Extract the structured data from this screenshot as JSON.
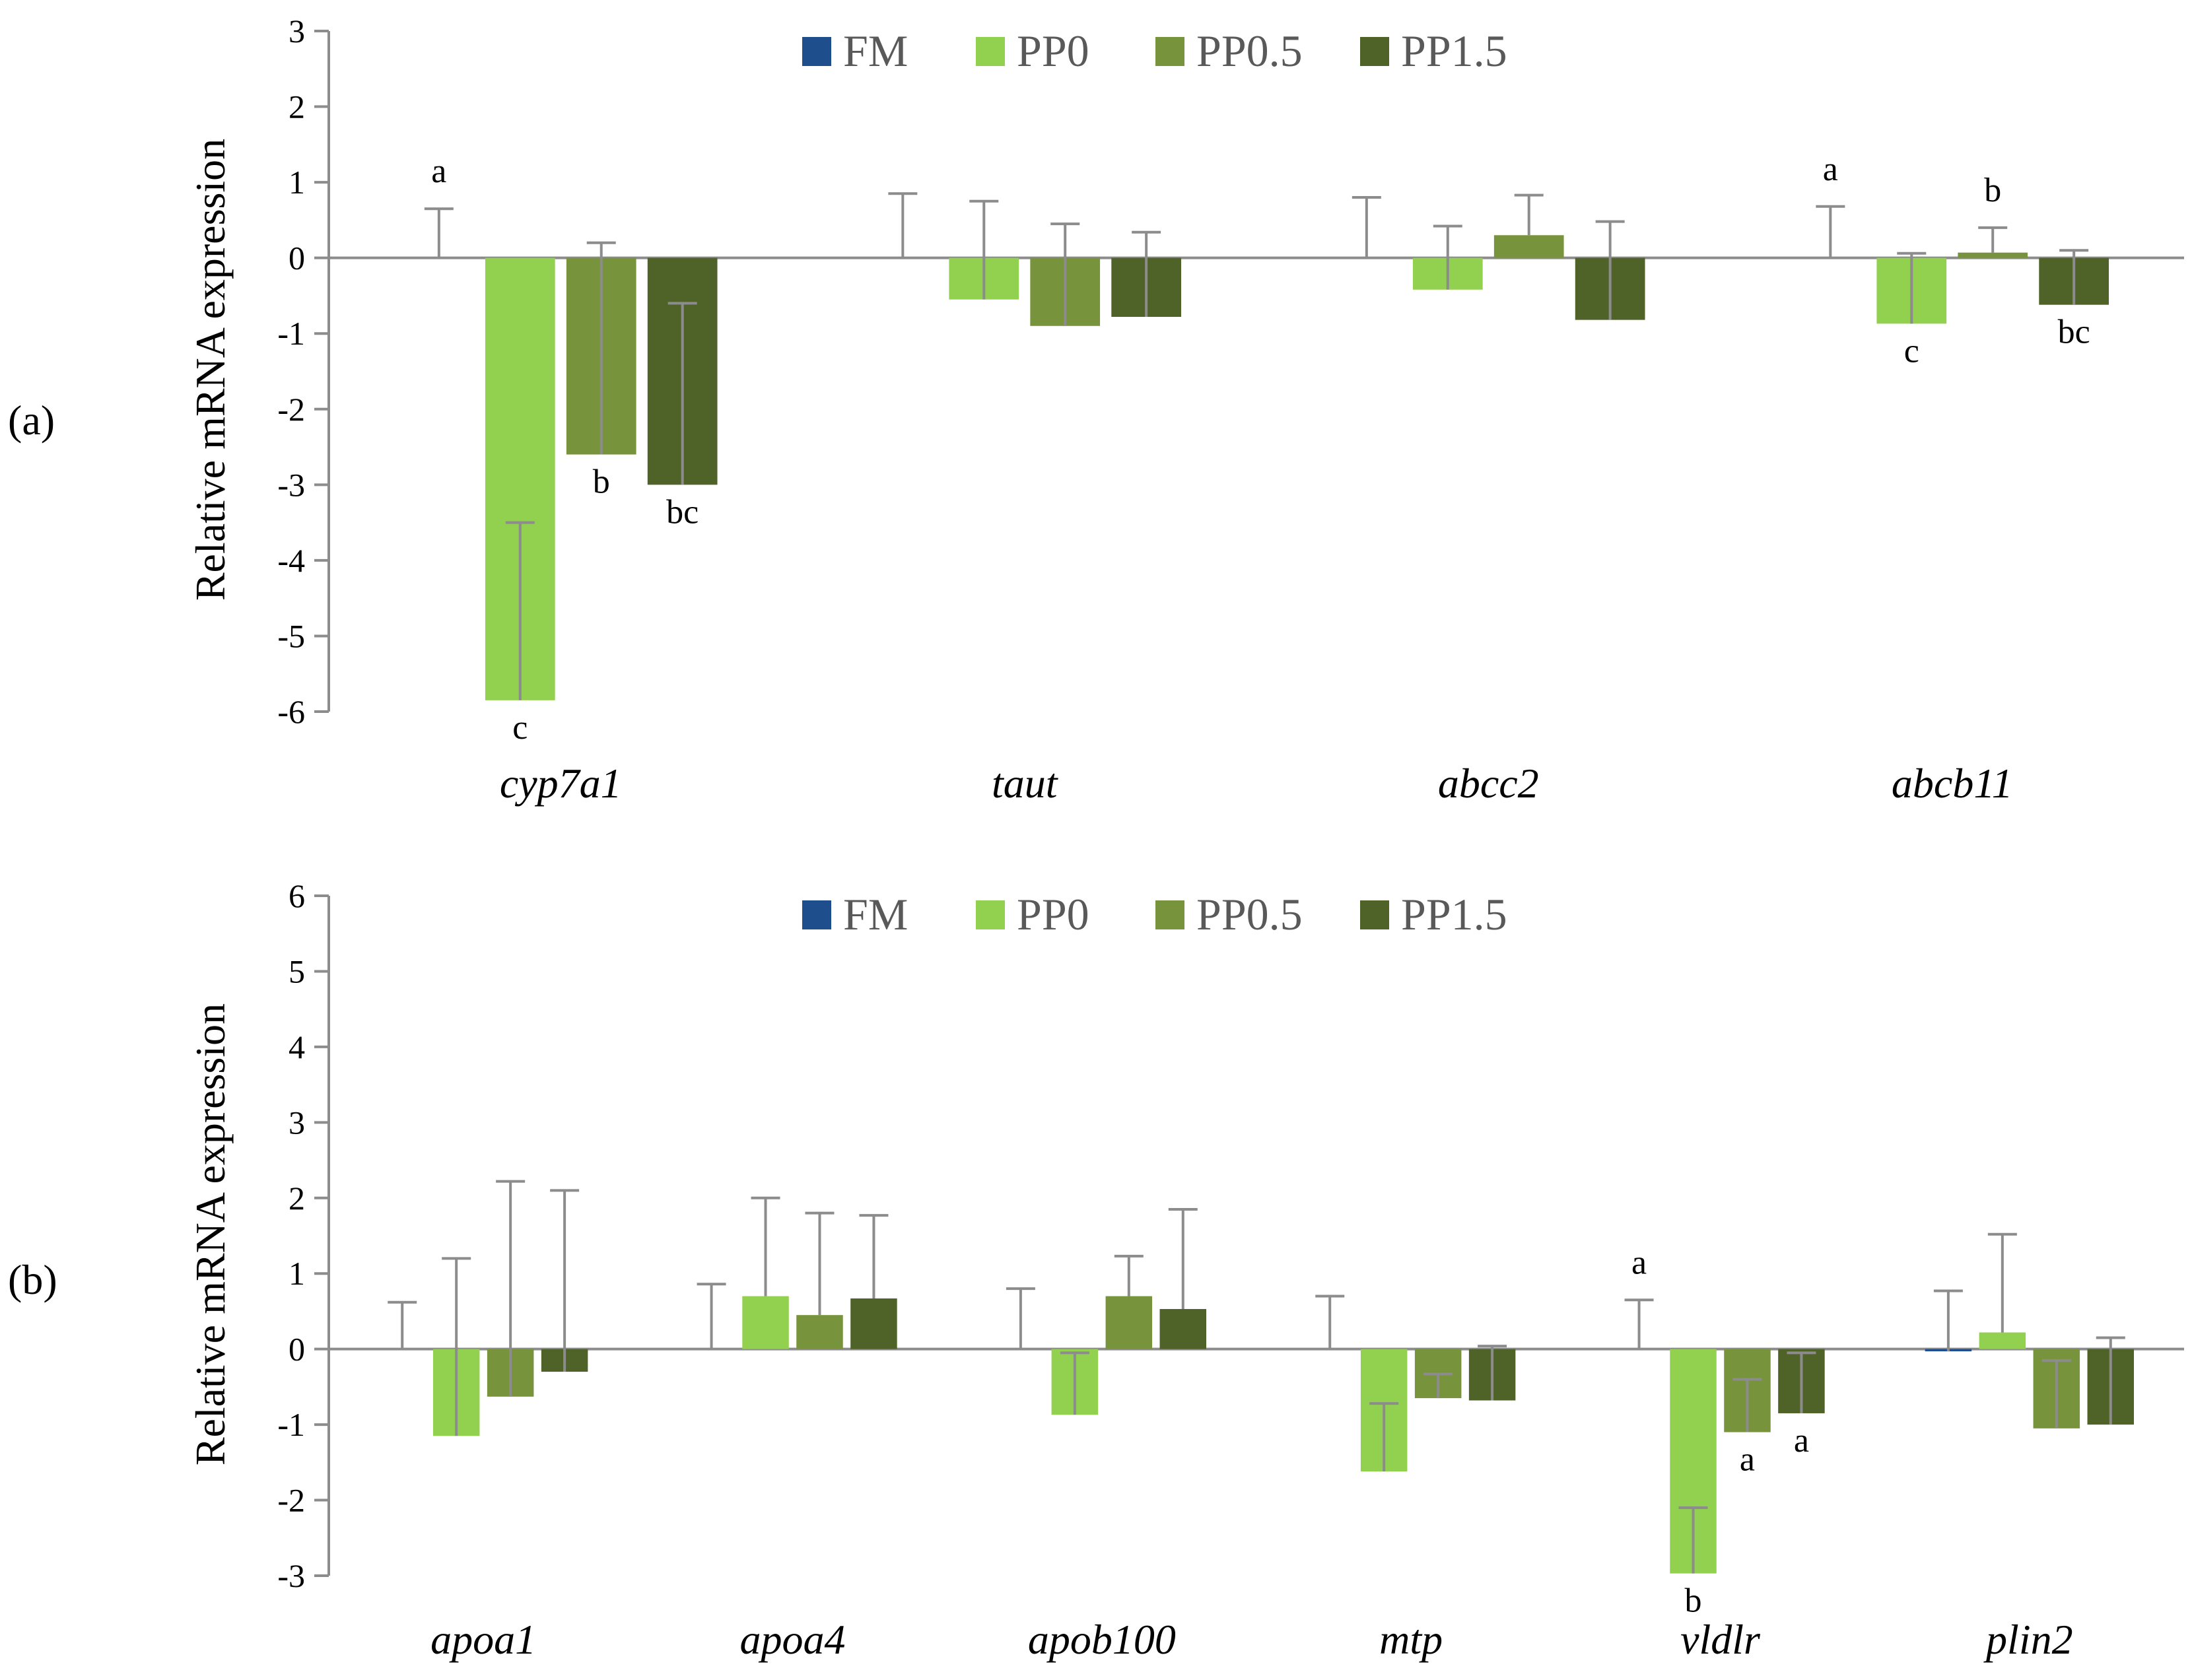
{
  "chart_data": [
    {
      "type": "bar",
      "panel_label": "(a)",
      "ylabel": "Relative mRNA expression",
      "ylim": [
        -6,
        3
      ],
      "yticks": [
        "3",
        "2",
        "1",
        "0",
        "-1",
        "-2",
        "-3",
        "-4",
        "-5",
        "-6"
      ],
      "categories": [
        "cyp7a1",
        "taut",
        "abcc2",
        "abcb11"
      ],
      "legend": [
        "FM",
        "PP0",
        "PP0.5",
        "PP1.5"
      ],
      "series": [
        {
          "name": "FM",
          "color": "#1f4e8c",
          "values": [
            0,
            0,
            0,
            0
          ],
          "errors": [
            0.65,
            0.85,
            0.8,
            0.68
          ],
          "labels": [
            "a",
            "",
            "",
            "a"
          ]
        },
        {
          "name": "PP0",
          "color": "#92d050",
          "values": [
            -5.85,
            -0.55,
            -0.42,
            -0.87
          ],
          "errors": [
            2.35,
            1.3,
            0.84,
            0.93
          ],
          "labels": [
            "c",
            "",
            "",
            "c"
          ]
        },
        {
          "name": "PP0.5",
          "color": "#77933c",
          "values": [
            -2.6,
            -0.9,
            0.3,
            0.07
          ],
          "errors": [
            2.8,
            1.35,
            0.53,
            0.33
          ],
          "labels": [
            "b",
            "",
            "",
            "b"
          ]
        },
        {
          "name": "PP1.5",
          "color": "#4f6228",
          "values": [
            -3.0,
            -0.78,
            -0.82,
            -0.62
          ],
          "errors": [
            2.4,
            1.12,
            1.3,
            0.72
          ],
          "labels": [
            "bc",
            "",
            "",
            "bc"
          ]
        }
      ]
    },
    {
      "type": "bar",
      "panel_label": "(b)",
      "ylabel": "Relative mRNA expression",
      "ylim": [
        -3,
        6
      ],
      "yticks": [
        "6",
        "5",
        "4",
        "3",
        "2",
        "1",
        "0",
        "-1",
        "-2",
        "-3"
      ],
      "categories": [
        "apoa1",
        "apoa4",
        "apob100",
        "mtp",
        "vldlr",
        "plin2"
      ],
      "legend": [
        "FM",
        "PP0",
        "PP0.5",
        "PP1.5"
      ],
      "series": [
        {
          "name": "FM",
          "color": "#1f4e8c",
          "values": [
            0,
            0,
            0,
            0,
            0,
            -0.03
          ],
          "errors": [
            0.62,
            0.86,
            0.8,
            0.7,
            0.65,
            0.8
          ],
          "labels": [
            "",
            "",
            "",
            "",
            "a",
            ""
          ]
        },
        {
          "name": "PP0",
          "color": "#92d050",
          "values": [
            -1.15,
            0.7,
            -0.87,
            -1.62,
            -2.97,
            0.22
          ],
          "errors": [
            2.35,
            1.3,
            0.82,
            0.9,
            0.87,
            1.3
          ],
          "labels": [
            "",
            "",
            "",
            "",
            "b",
            ""
          ]
        },
        {
          "name": "PP0.5",
          "color": "#77933c",
          "values": [
            -0.63,
            0.45,
            0.7,
            -0.65,
            -1.1,
            -1.05
          ],
          "errors": [
            2.85,
            1.35,
            0.53,
            0.32,
            0.7,
            0.9
          ],
          "labels": [
            "",
            "",
            "",
            "",
            "a",
            ""
          ]
        },
        {
          "name": "PP1.5",
          "color": "#4f6228",
          "values": [
            -0.3,
            0.67,
            0.53,
            -0.68,
            -0.85,
            -1.0
          ],
          "errors": [
            2.4,
            1.1,
            1.32,
            0.72,
            0.8,
            1.15
          ],
          "labels": [
            "",
            "",
            "",
            "",
            "a",
            ""
          ]
        }
      ]
    }
  ]
}
